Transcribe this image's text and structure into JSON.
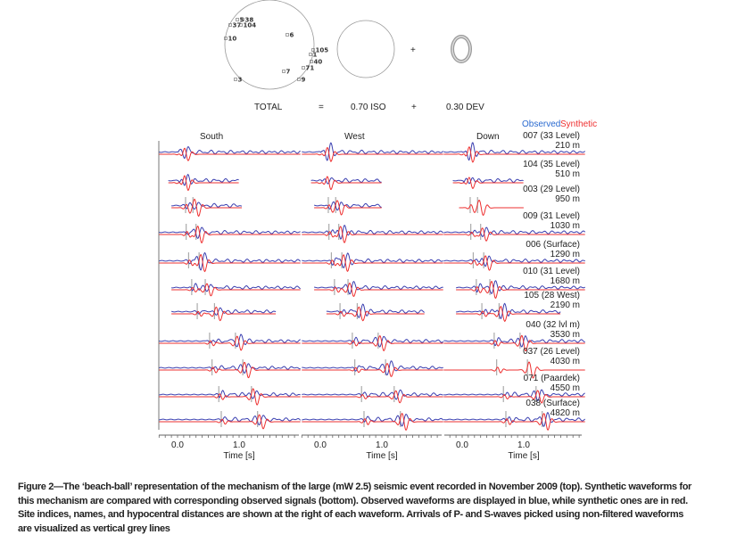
{
  "beachball": {
    "station_labels": [
      "5",
      "38",
      "37",
      "104",
      "10",
      "6",
      "105",
      "1",
      "40",
      "71",
      "7",
      "9",
      "3"
    ],
    "decomposition": {
      "total_label": "TOTAL",
      "equals": "=",
      "iso_label": "0.70 ISO",
      "plus": "+",
      "dev_label": "0.30 DEV"
    }
  },
  "chart_data": {
    "type": "line",
    "legend": {
      "observed": "Observed",
      "synthetic": "Synthetic",
      "placement": "top-right"
    },
    "colors": {
      "observed": "#3a3fb0",
      "synthetic": "#ee3030",
      "picks": "#aaaaaa"
    },
    "components": [
      "South",
      "West",
      "Down"
    ],
    "xlabel": "Time [s]",
    "xticks": [
      "0.0",
      "1.0"
    ],
    "xlim": [
      -0.3,
      2.0
    ],
    "stations": [
      {
        "name": "007 (33 Level)",
        "distance": "210 m",
        "picks": [
          null,
          null
        ]
      },
      {
        "name": "104 (35 Level)",
        "distance": "510 m",
        "picks": [
          null,
          null
        ]
      },
      {
        "name": "003 (29 Level)",
        "distance": "950 m",
        "picks": [
          0.13,
          0.25
        ]
      },
      {
        "name": "009 (31 Level)",
        "distance": "1030 m",
        "picks": [
          0.14,
          0.3
        ]
      },
      {
        "name": "006 (Surface)",
        "distance": "1290 m",
        "picks": [
          0.18,
          0.35
        ]
      },
      {
        "name": "010 (31 Level)",
        "distance": "1680 m",
        "picks": [
          0.23,
          0.45
        ]
      },
      {
        "name": "105 (28 West)",
        "distance": "2190 m",
        "picks": [
          0.32,
          0.6
        ]
      },
      {
        "name": "040 (32 lvl m)",
        "distance": "3530 m",
        "picks": [
          0.52,
          0.94
        ]
      },
      {
        "name": "037 (26 Level)",
        "distance": "4030 m",
        "picks": [
          0.56,
          1.06
        ]
      },
      {
        "name": "071 (Paardek)",
        "distance": "4550 m",
        "picks": [
          0.67,
          1.2
        ]
      },
      {
        "name": "038 (Surface)",
        "distance": "4820 m",
        "picks": [
          0.71,
          1.3
        ]
      }
    ]
  },
  "caption": [
    "Figure 2—The ‘beach-ball’ representation of the mechanism of the large (mW 2.5) seismic event recorded in November 2009 (top). Synthetic waveforms for",
    "this mechanism are compared with corresponding observed signals (bottom). Observed waveforms are displayed in blue, while synthetic ones are in red.",
    "Site indices, names, and hypocentral distances are shown at the right of each waveform. Arrivals of P- and S-waves picked using non-filtered waveforms",
    "are visualized as vertical grey lines"
  ]
}
